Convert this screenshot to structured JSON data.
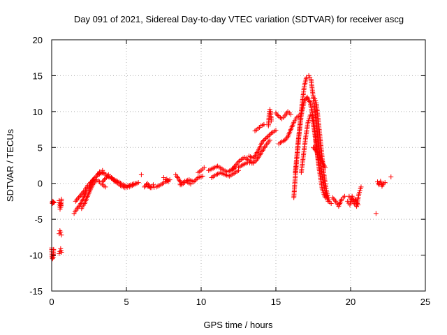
{
  "chart_data": {
    "type": "scatter",
    "title": "Day 091 of 2021, Sidereal Day-to-day VTEC variation (SDTVAR) for receiver ascg",
    "xlabel": "GPS time / hours",
    "ylabel": "SDTVAR / TECUs",
    "xlim": [
      0,
      25
    ],
    "ylim": [
      -15,
      20
    ],
    "xticks": [
      0,
      5,
      10,
      15,
      20,
      25
    ],
    "yticks": [
      -15,
      -10,
      -5,
      0,
      5,
      10,
      15,
      20
    ],
    "grid": true,
    "marker": "plus",
    "color": "#ff0000",
    "series": [
      {
        "name": "SDTVAR",
        "segments": [
          {
            "x": [
              0.02,
              0.05,
              0.08,
              0.1,
              0.12,
              0.15
            ],
            "y": [
              -2.6,
              -2.8,
              -2.5,
              -2.7,
              -2.6,
              -2.7
            ]
          },
          {
            "x": [
              0.0,
              0.03,
              0.06,
              0.1,
              0.13
            ],
            "y": [
              -9.0,
              -10.4,
              -10.5,
              -10.3,
              -9.2
            ]
          },
          {
            "x": [
              0.5,
              0.53,
              0.56,
              0.6,
              0.62,
              0.65
            ],
            "y": [
              -2.4,
              -3.0,
              -3.6,
              -2.8,
              -3.3,
              -2.2
            ]
          },
          {
            "x": [
              0.5,
              0.55,
              0.6,
              0.65
            ],
            "y": [
              -7.0,
              -6.6,
              -6.8,
              -7.2
            ]
          },
          {
            "x": [
              0.5,
              0.55,
              0.6,
              0.65
            ],
            "y": [
              -9.8,
              -9.5,
              -9.1,
              -9.6
            ]
          },
          {
            "x": [
              1.5,
              1.7,
              1.9,
              2.1,
              2.3,
              2.5,
              2.7,
              2.9,
              3.1,
              3.3,
              3.5
            ],
            "y": [
              -4.2,
              -3.5,
              -3.0,
              -2.2,
              -1.2,
              -0.5,
              0.3,
              0.8,
              1.2,
              1.4,
              1.5
            ]
          },
          {
            "x": [
              1.6,
              1.8,
              2.0,
              2.2,
              2.4,
              2.6,
              2.8,
              3.0,
              3.2,
              3.4
            ],
            "y": [
              -2.5,
              -2.0,
              -1.5,
              -1.0,
              -0.3,
              0.1,
              0.6,
              1.0,
              1.4,
              1.8
            ]
          },
          {
            "x": [
              2.0,
              2.2,
              2.4,
              2.6,
              2.8,
              3.0,
              3.2,
              3.4,
              3.6
            ],
            "y": [
              -3.5,
              -2.8,
              -1.8,
              -0.8,
              0.0,
              0.5,
              0.2,
              -0.2,
              -0.5
            ]
          },
          {
            "x": [
              3.0,
              3.2,
              3.5,
              3.8,
              4.1,
              4.4,
              4.7,
              5.0,
              5.3,
              5.6
            ],
            "y": [
              1.0,
              1.6,
              1.4,
              0.9,
              0.6,
              0.3,
              -0.1,
              -0.4,
              -0.2,
              0.0
            ]
          },
          {
            "x": [
              3.4,
              3.6,
              3.8,
              4.0,
              4.2,
              4.4
            ],
            "y": [
              0.2,
              0.7,
              1.2,
              0.8,
              0.3,
              0.1
            ]
          },
          {
            "x": [
              4.0,
              4.3,
              4.6,
              4.9,
              5.2,
              5.5,
              5.8
            ],
            "y": [
              0.8,
              0.2,
              -0.3,
              -0.6,
              -0.5,
              -0.2,
              0.1
            ]
          },
          {
            "x": [
              6.0
            ],
            "y": [
              1.2
            ]
          },
          {
            "x": [
              6.2,
              6.4,
              6.6,
              6.8
            ],
            "y": [
              -0.5,
              0.0,
              -0.6,
              -0.2
            ]
          },
          {
            "x": [
              6.4,
              6.7,
              7.0,
              7.3,
              7.6,
              7.9
            ],
            "y": [
              -0.4,
              -0.6,
              -0.5,
              -0.2,
              0.2,
              0.5
            ]
          },
          {
            "x": [
              7.5,
              7.6,
              7.7,
              7.8
            ],
            "y": [
              0.8,
              0.5,
              0.6,
              0.2
            ]
          },
          {
            "x": [
              8.3,
              8.5,
              8.7,
              9.0,
              9.3
            ],
            "y": [
              1.2,
              0.6,
              -0.2,
              0.3,
              -0.1
            ]
          },
          {
            "x": [
              8.6,
              8.9,
              9.2,
              9.5,
              9.8,
              10.1
            ],
            "y": [
              -0.2,
              0.3,
              0.5,
              0.2,
              0.8,
              1.0
            ]
          },
          {
            "x": [
              9.8,
              10.0,
              10.2
            ],
            "y": [
              1.5,
              1.8,
              2.2
            ]
          },
          {
            "x": [
              10.5,
              10.8,
              11.1,
              11.4,
              11.7,
              12.0,
              12.3
            ],
            "y": [
              1.8,
              2.1,
              2.4,
              2.0,
              1.6,
              1.8,
              2.2
            ]
          },
          {
            "x": [
              10.7,
              11.0,
              11.3,
              11.6,
              11.9,
              12.2,
              12.5
            ],
            "y": [
              0.8,
              1.2,
              1.5,
              1.2,
              1.0,
              1.4,
              1.8
            ]
          },
          {
            "x": [
              12.0,
              12.3,
              12.6,
              12.9,
              13.2,
              13.5
            ],
            "y": [
              1.8,
              2.5,
              3.2,
              3.6,
              3.2,
              2.8
            ]
          },
          {
            "x": [
              12.5,
              12.8,
              13.1,
              13.4,
              13.7,
              14.0,
              14.3,
              14.6
            ],
            "y": [
              2.2,
              2.6,
              2.9,
              2.8,
              3.2,
              4.2,
              5.2,
              6.0
            ]
          },
          {
            "x": [
              13.2,
              13.5,
              13.8,
              14.1,
              14.4,
              14.7,
              15.0
            ],
            "y": [
              3.8,
              3.5,
              4.5,
              5.8,
              6.4,
              7.0,
              7.4
            ]
          },
          {
            "x": [
              13.6,
              13.8,
              14.0,
              14.2
            ],
            "y": [
              7.3,
              7.6,
              8.0,
              8.2
            ]
          },
          {
            "x": [
              14.5,
              14.55,
              14.6,
              14.65,
              14.7
            ],
            "y": [
              8.0,
              9.5,
              10.3,
              9.8,
              8.7
            ]
          },
          {
            "x": [
              15.2,
              15.4,
              15.6,
              15.8,
              16.0,
              16.2,
              16.4,
              16.6
            ],
            "y": [
              5.5,
              5.8,
              6.0,
              6.5,
              7.5,
              8.5,
              9.2,
              9.5
            ]
          },
          {
            "x": [
              15.0,
              15.2,
              15.4,
              15.6,
              15.8,
              16.0
            ],
            "y": [
              9.8,
              9.3,
              9.0,
              9.4,
              10.0,
              9.6
            ]
          },
          {
            "x": [
              16.2,
              16.3,
              16.45,
              16.6,
              16.75,
              16.9,
              17.05,
              17.2,
              17.35,
              17.5,
              17.7,
              17.9,
              18.1,
              18.3,
              18.5
            ],
            "y": [
              -2.0,
              1.0,
              4.5,
              8.0,
              11.0,
              13.5,
              14.8,
              15.0,
              14.5,
              12.0,
              8.5,
              4.5,
              1.0,
              -1.2,
              -2.5
            ]
          },
          {
            "x": [
              16.3,
              16.5,
              16.7,
              16.9,
              17.1,
              17.3,
              17.5,
              17.7,
              17.9,
              18.1,
              18.3
            ],
            "y": [
              1.5,
              6.0,
              9.5,
              11.5,
              12.0,
              11.2,
              9.0,
              5.5,
              2.0,
              -0.8,
              -2.0
            ]
          },
          {
            "x": [
              16.7,
              16.85,
              17.0,
              17.15,
              17.3,
              17.45,
              17.6,
              17.75,
              17.9
            ],
            "y": [
              1.5,
              4.0,
              6.5,
              8.5,
              9.5,
              9.0,
              7.0,
              4.5,
              2.0
            ]
          },
          {
            "x": [
              17.6,
              17.7,
              17.8,
              17.9,
              18.0,
              18.1,
              18.2,
              18.3,
              18.4,
              18.5,
              18.6,
              18.7
            ],
            "y": [
              11.8,
              11.2,
              9.5,
              7.5,
              5.5,
              3.5,
              1.5,
              0.0,
              -1.2,
              -2.0,
              -2.6,
              -2.8
            ]
          },
          {
            "x": [
              17.5,
              17.7,
              17.9,
              18.1,
              18.3
            ],
            "y": [
              5.0,
              4.5,
              3.8,
              3.0,
              2.2
            ]
          },
          {
            "x": [
              18.8,
              19.0,
              19.2,
              19.4,
              19.6
            ],
            "y": [
              -2.0,
              -2.5,
              -3.2,
              -2.2,
              -1.8
            ]
          },
          {
            "x": [
              19.8,
              19.95,
              20.1,
              20.25,
              20.4,
              20.55,
              20.7
            ],
            "y": [
              -2.5,
              -3.0,
              -1.8,
              -2.8,
              -3.2,
              -1.5,
              -0.5
            ]
          },
          {
            "x": [
              19.9,
              20.1,
              20.3,
              20.5
            ],
            "y": [
              -1.8,
              -2.5,
              -2.2,
              -3.0
            ]
          },
          {
            "x": [
              21.7
            ],
            "y": [
              -4.2
            ]
          },
          {
            "x": [
              21.8,
              21.9,
              22.0,
              22.1,
              22.2,
              22.3
            ],
            "y": [
              0.2,
              -0.2,
              0.3,
              -0.4,
              0.0,
              0.1
            ]
          },
          {
            "x": [
              22.7
            ],
            "y": [
              0.9
            ]
          }
        ]
      }
    ]
  }
}
